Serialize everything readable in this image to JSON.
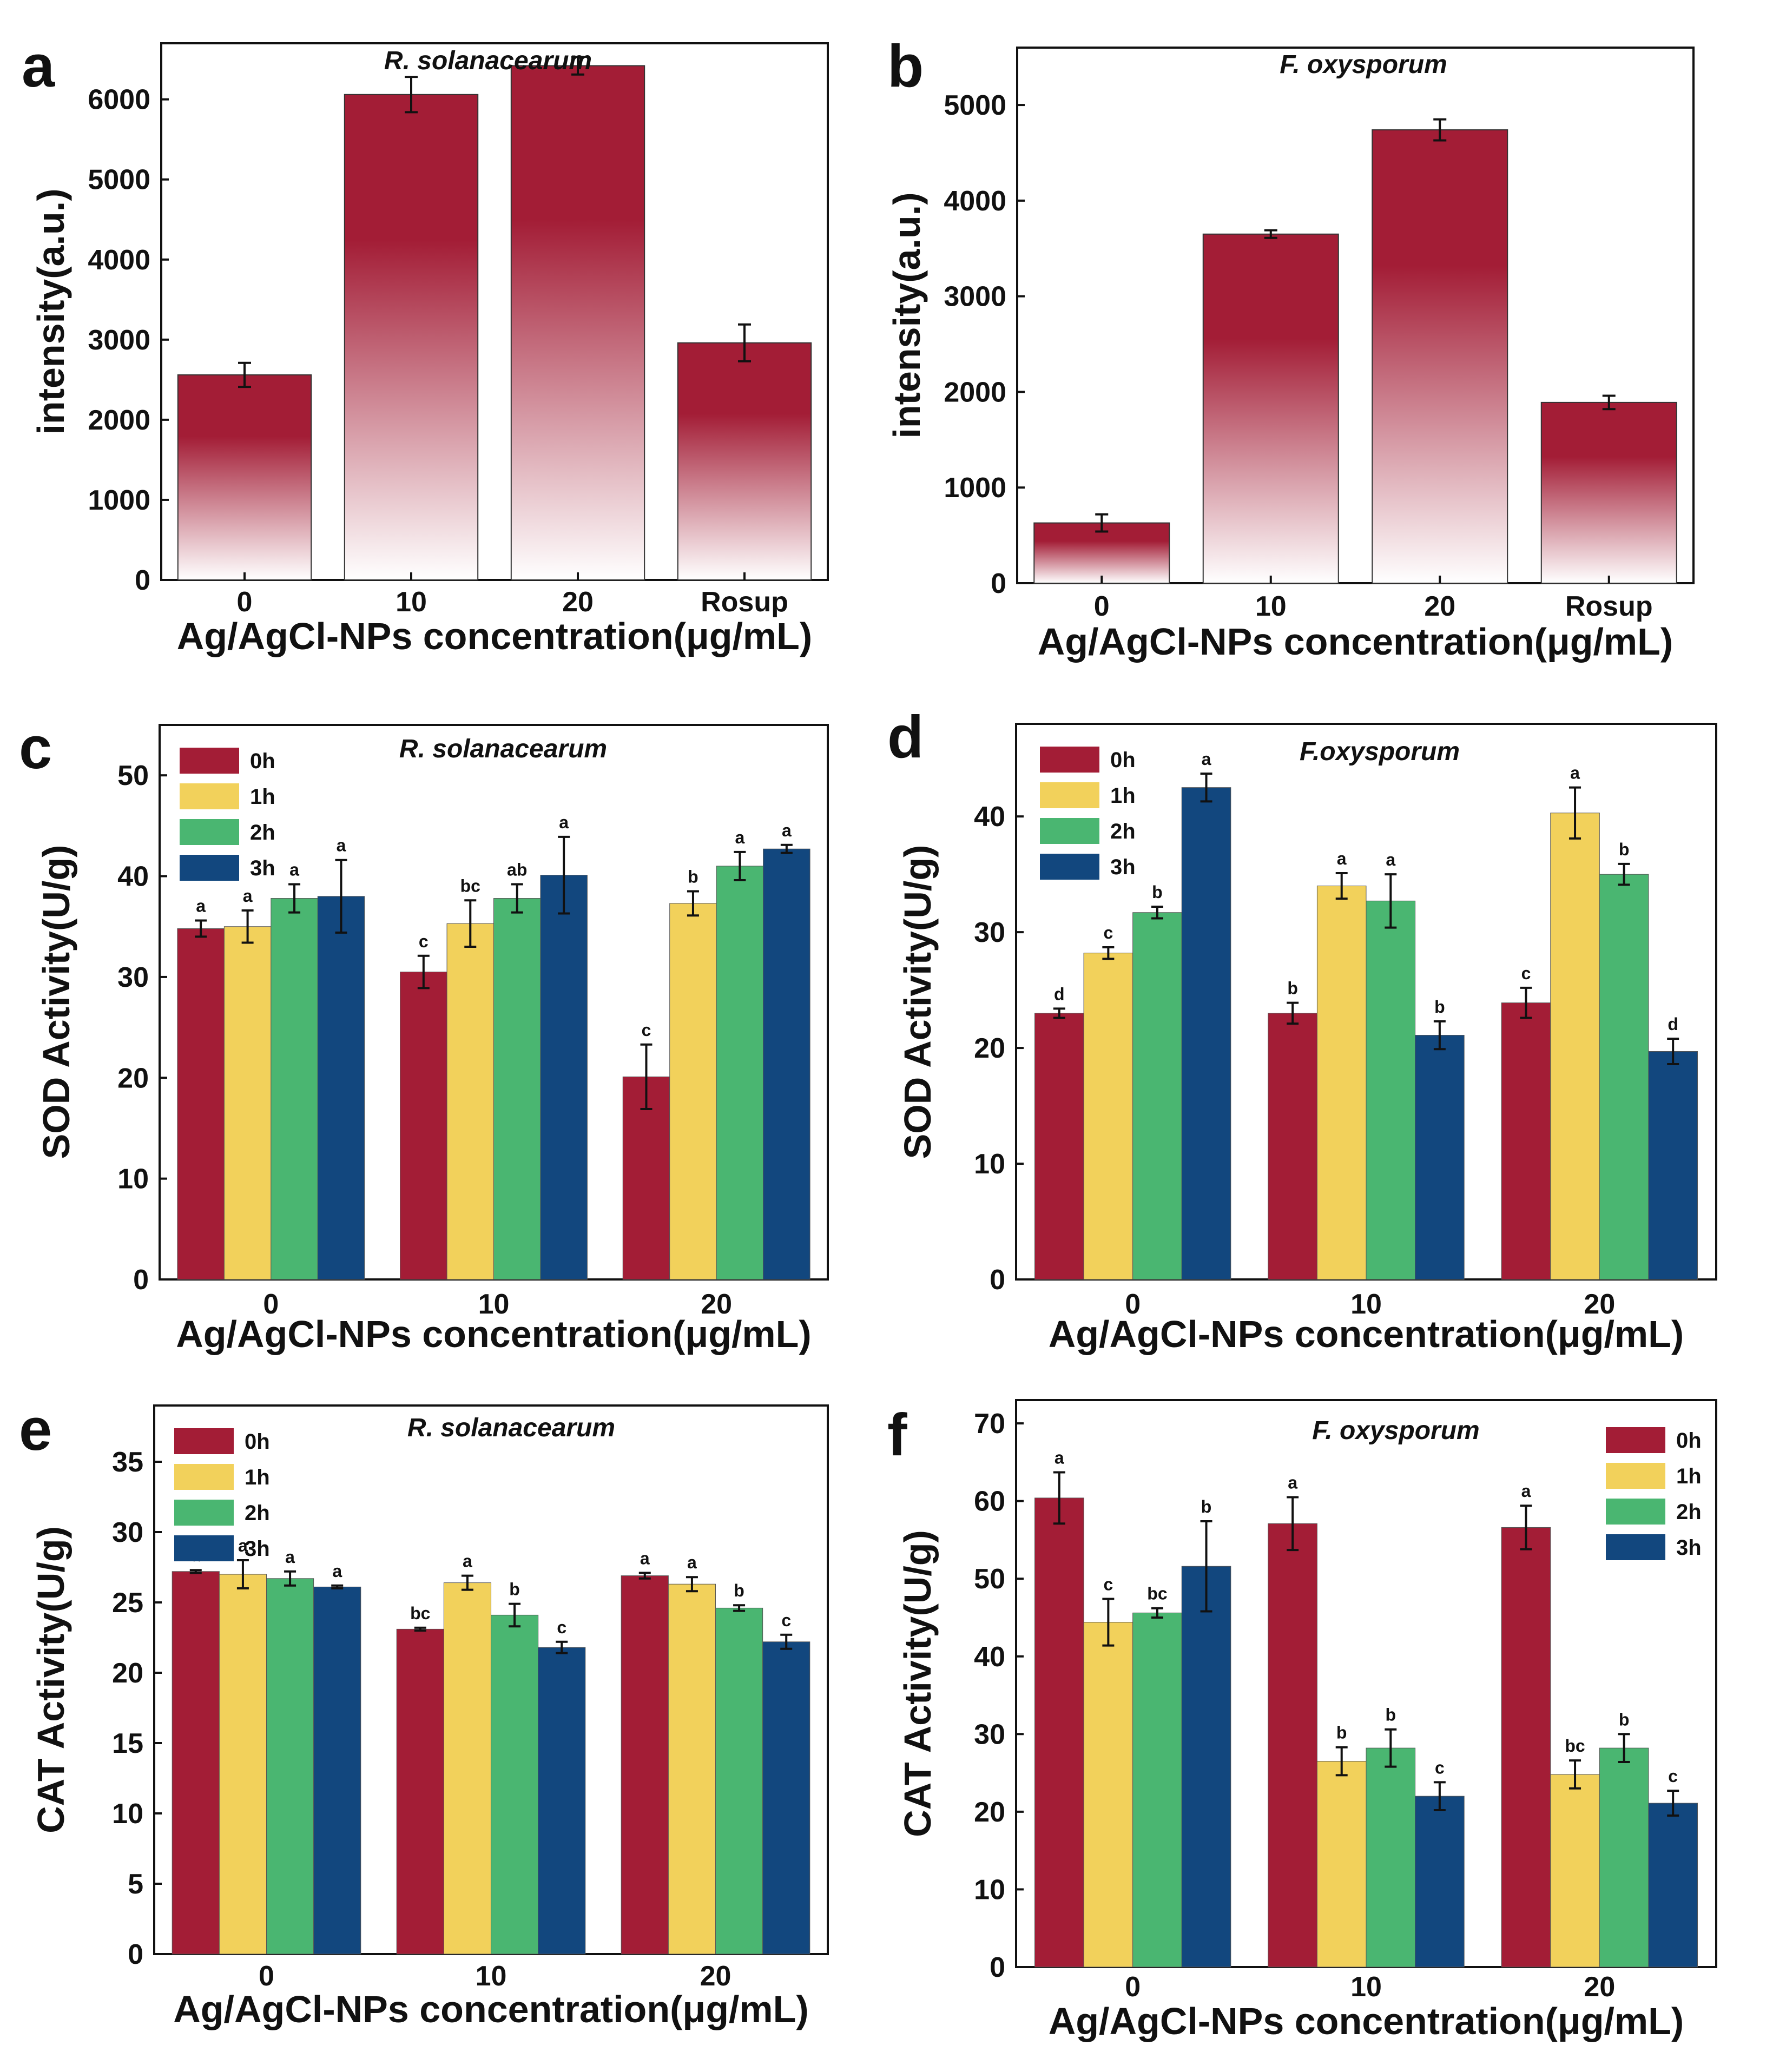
{
  "colors": {
    "h0": "#a31d36",
    "h1": "#f2d15b",
    "h2": "#4ab671",
    "h3": "#12477e",
    "axis": "#111111"
  },
  "chart_data": [
    {
      "panel": "a",
      "type": "bar",
      "title": "R. solanacearum",
      "categories": [
        "0",
        "10",
        "20",
        "Rosup"
      ],
      "values": [
        2560,
        6060,
        6420,
        2960
      ],
      "errors": [
        150,
        220,
        110,
        230
      ],
      "ylim": [
        0,
        6700
      ],
      "yticks": [
        0,
        1000,
        2000,
        3000,
        4000,
        5000,
        6000
      ],
      "xlabel": "Ag/AgCl-NPs concentration(μg/mL)",
      "ylabel": "intensity(a.u.)"
    },
    {
      "panel": "b",
      "type": "bar",
      "title": "F. oxysporum",
      "categories": [
        "0",
        "10",
        "20",
        "Rosup"
      ],
      "values": [
        630,
        3650,
        4740,
        1890
      ],
      "errors": [
        90,
        40,
        110,
        70
      ],
      "ylim": [
        0,
        5600
      ],
      "yticks": [
        0,
        1000,
        2000,
        3000,
        4000,
        5000
      ],
      "xlabel": "Ag/AgCl-NPs concentration(μg/mL)",
      "ylabel": "intensity(a.u.)"
    },
    {
      "panel": "c",
      "type": "bar",
      "title": "R. solanacearum",
      "categories": [
        "0",
        "10",
        "20"
      ],
      "series": [
        {
          "name": "0h",
          "values": [
            34.8,
            30.5,
            20.1
          ],
          "errors": [
            0.8,
            1.6,
            3.2
          ],
          "letters": [
            "a",
            "c",
            "c"
          ]
        },
        {
          "name": "1h",
          "values": [
            35.0,
            35.3,
            37.3
          ],
          "errors": [
            1.6,
            2.3,
            1.2
          ],
          "letters": [
            "a",
            "bc",
            "b"
          ]
        },
        {
          "name": "2h",
          "values": [
            37.8,
            37.8,
            41.0
          ],
          "errors": [
            1.4,
            1.4,
            1.4
          ],
          "letters": [
            "a",
            "ab",
            "a"
          ]
        },
        {
          "name": "3h",
          "values": [
            38.0,
            40.1,
            42.7
          ],
          "errors": [
            3.6,
            3.8,
            0.4
          ],
          "letters": [
            "a",
            "a",
            "a"
          ]
        }
      ],
      "ylim": [
        0,
        55
      ],
      "yticks": [
        0,
        10,
        20,
        30,
        40,
        50
      ],
      "xlabel": "Ag/AgCl-NPs concentration(μg/mL)",
      "ylabel": "SOD Activity(U/g)"
    },
    {
      "panel": "d",
      "type": "bar",
      "title": "F.oxysporum",
      "categories": [
        "0",
        "10",
        "20"
      ],
      "series": [
        {
          "name": "0h",
          "values": [
            23.0,
            23.0,
            23.9
          ],
          "errors": [
            0.4,
            0.9,
            1.3
          ],
          "letters": [
            "d",
            "b",
            "c"
          ]
        },
        {
          "name": "1h",
          "values": [
            28.2,
            34.0,
            40.3
          ],
          "errors": [
            0.5,
            1.1,
            2.2
          ],
          "letters": [
            "c",
            "a",
            "a"
          ]
        },
        {
          "name": "2h",
          "values": [
            31.7,
            32.7,
            35.0
          ],
          "errors": [
            0.5,
            2.3,
            0.9
          ],
          "letters": [
            "b",
            "a",
            "b"
          ]
        },
        {
          "name": "3h",
          "values": [
            42.5,
            21.1,
            19.7
          ],
          "errors": [
            1.2,
            1.2,
            1.1
          ],
          "letters": [
            "a",
            "b",
            "d"
          ]
        }
      ],
      "ylim": [
        0,
        48
      ],
      "yticks": [
        0,
        10,
        20,
        30,
        40
      ],
      "xlabel": "Ag/AgCl-NPs concentration(μg/mL)",
      "ylabel": "SOD Activity(U/g)"
    },
    {
      "panel": "e",
      "type": "bar",
      "title": "R. solanacearum",
      "categories": [
        "0",
        "10",
        "20"
      ],
      "series": [
        {
          "name": "0h",
          "values": [
            27.2,
            23.1,
            26.9
          ],
          "errors": [
            0.1,
            0.1,
            0.2
          ],
          "letters": [
            "a",
            "bc",
            "a"
          ]
        },
        {
          "name": "1h",
          "values": [
            27.0,
            26.4,
            26.3
          ],
          "errors": [
            1.0,
            0.5,
            0.5
          ],
          "letters": [
            "a",
            "a",
            "a"
          ]
        },
        {
          "name": "2h",
          "values": [
            26.7,
            24.1,
            24.6
          ],
          "errors": [
            0.5,
            0.8,
            0.2
          ],
          "letters": [
            "a",
            "b",
            "b"
          ]
        },
        {
          "name": "3h",
          "values": [
            26.1,
            21.8,
            22.2
          ],
          "errors": [
            0.1,
            0.4,
            0.5
          ],
          "letters": [
            "a",
            "c",
            "c"
          ]
        }
      ],
      "ylim": [
        0,
        39
      ],
      "yticks": [
        0,
        5,
        10,
        15,
        20,
        25,
        30,
        35
      ],
      "xlabel": "Ag/AgCl-NPs concentration(μg/mL)",
      "ylabel": "CAT Activity(U/g)"
    },
    {
      "panel": "f",
      "type": "bar",
      "title": "F. oxysporum",
      "categories": [
        "0",
        "10",
        "20"
      ],
      "series": [
        {
          "name": "0h",
          "values": [
            60.4,
            57.1,
            56.6
          ],
          "errors": [
            3.3,
            3.4,
            2.8
          ],
          "letters": [
            "a",
            "a",
            "a"
          ]
        },
        {
          "name": "1h",
          "values": [
            44.4,
            26.5,
            24.8
          ],
          "errors": [
            3.0,
            1.8,
            1.8
          ],
          "letters": [
            "c",
            "b",
            "bc"
          ]
        },
        {
          "name": "2h",
          "values": [
            45.6,
            28.2,
            28.2
          ],
          "errors": [
            0.6,
            2.4,
            1.8
          ],
          "letters": [
            "bc",
            "b",
            "b"
          ]
        },
        {
          "name": "3h",
          "values": [
            51.6,
            22.0,
            21.1
          ],
          "errors": [
            5.8,
            1.8,
            1.6
          ],
          "letters": [
            "b",
            "c",
            "c"
          ]
        }
      ],
      "ylim": [
        0,
        73
      ],
      "yticks": [
        0,
        10,
        20,
        30,
        40,
        50,
        60,
        70
      ],
      "xlabel": "Ag/AgCl-NPs concentration(μg/mL)",
      "ylabel": "CAT Activity(U/g)"
    }
  ]
}
